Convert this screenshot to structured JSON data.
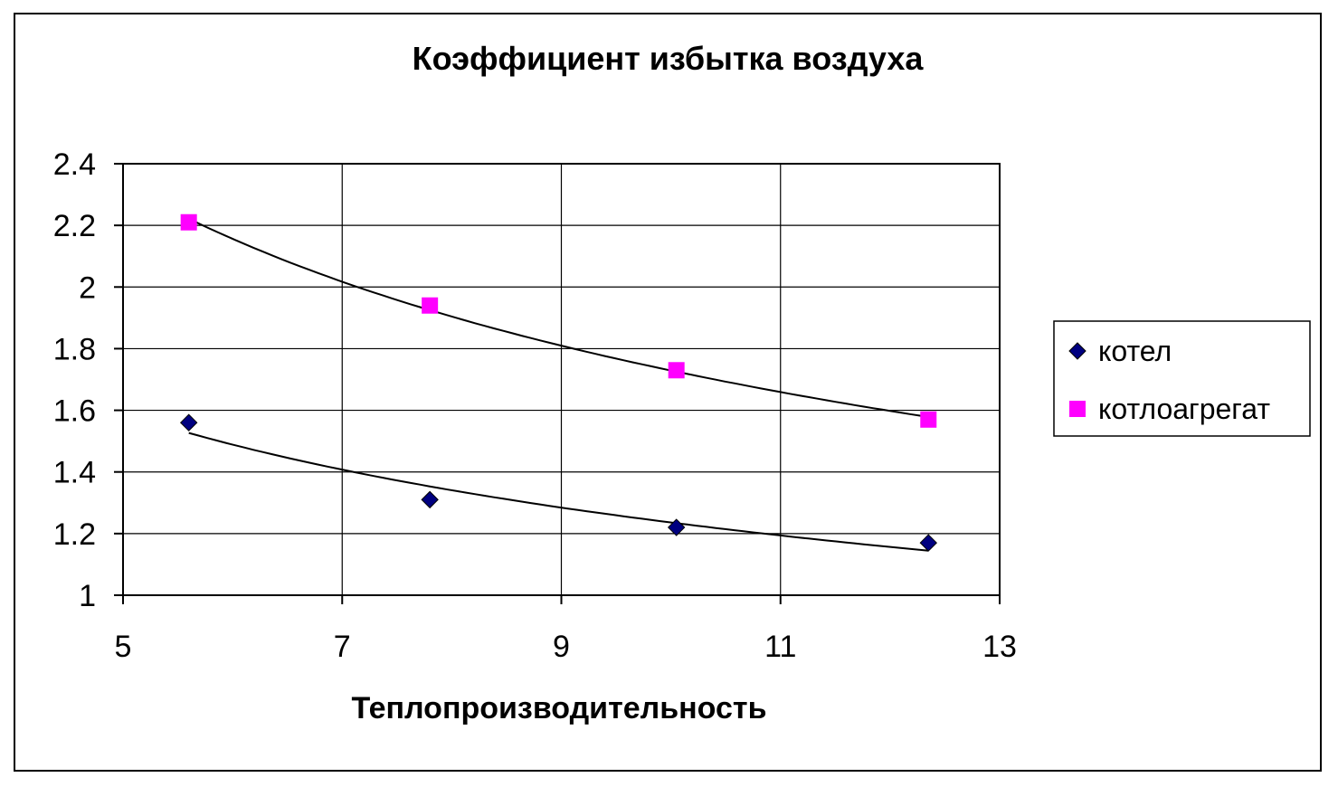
{
  "chart_data": {
    "type": "scatter",
    "title": "Коэффициент избытка воздуха",
    "xlabel": "Теплопроизводительность",
    "ylabel": "",
    "xlim": [
      5,
      13
    ],
    "ylim": [
      1,
      2.4
    ],
    "xticks": [
      5,
      7,
      9,
      11,
      13
    ],
    "yticks": [
      1,
      1.2,
      1.4,
      1.6,
      1.8,
      2,
      2.2,
      2.4
    ],
    "ytick_labels": [
      "1",
      "1.2",
      "1.4",
      "1.6",
      "1.8",
      "2",
      "2.2",
      "2.4"
    ],
    "grid": true,
    "legend_position": "right",
    "series": [
      {
        "name": "котел",
        "marker": "diamond",
        "color": "#000080",
        "x": [
          5.6,
          7.8,
          10.05,
          12.35
        ],
        "y": [
          1.56,
          1.31,
          1.22,
          1.17
        ],
        "trendline": true
      },
      {
        "name": "котлоагрегат",
        "marker": "square",
        "color": "#ff00ff",
        "x": [
          5.6,
          7.8,
          10.05,
          12.35
        ],
        "y": [
          2.21,
          1.94,
          1.73,
          1.57
        ],
        "trendline": true
      }
    ]
  }
}
